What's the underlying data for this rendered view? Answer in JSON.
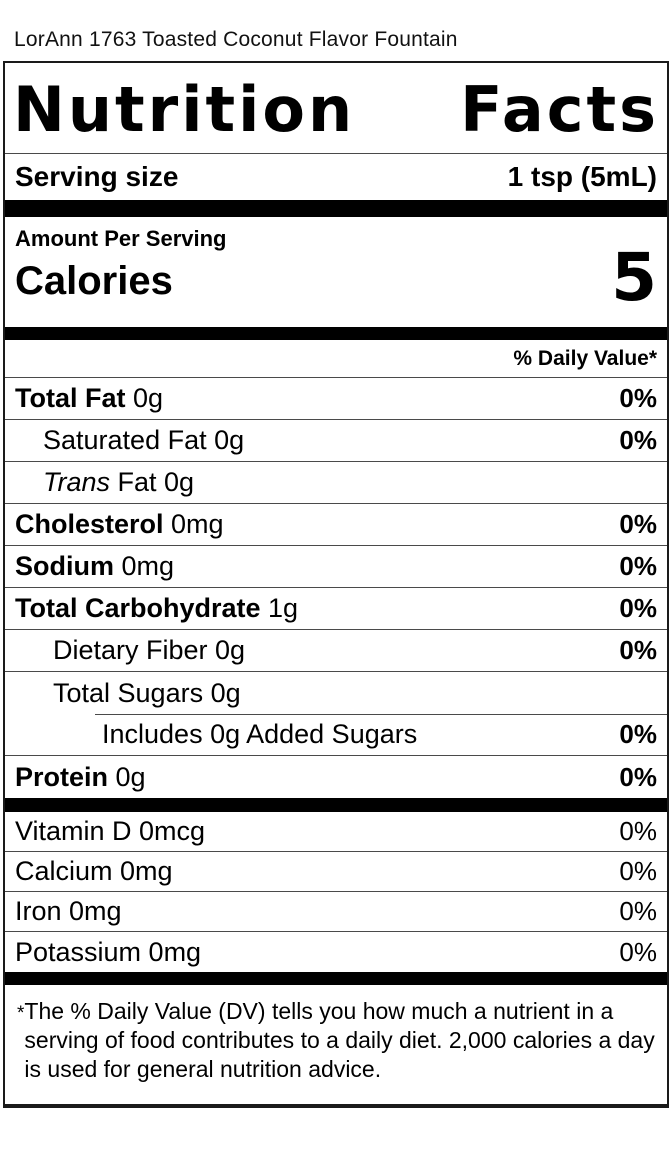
{
  "page": {
    "product_title": "LorAnn 1763 Toasted Coconut Flavor Fountain"
  },
  "label": {
    "title_word1": "Nutrition",
    "title_word2": "Facts",
    "serving": {
      "label": "Serving size",
      "value": "1 tsp (5mL)"
    },
    "amount_per_serving": "Amount Per Serving",
    "calories_label": "Calories",
    "calories_value": "5",
    "daily_value_header": "% Daily Value*",
    "rows": [
      {
        "strong": "Total Fat",
        "text": " 0g",
        "dv": "0%"
      },
      {
        "text": "Saturated Fat 0g",
        "dv": "0%"
      },
      {
        "italic": "Trans",
        "text": " Fat 0g",
        "dv": ""
      },
      {
        "strong": "Cholesterol",
        "text": " 0mg",
        "dv": "0%"
      },
      {
        "strong": "Sodium",
        "text": " 0mg",
        "dv": "0%"
      },
      {
        "strong": "Total Carbohydrate",
        "text": " 1g",
        "dv": "0%"
      },
      {
        "text": "Dietary Fiber 0g",
        "dv": "0%"
      },
      {
        "text": "Total Sugars 0g",
        "dv": ""
      },
      {
        "text": "Includes 0g Added Sugars",
        "dv": "0%"
      },
      {
        "strong": "Protein",
        "text": " 0g",
        "dv": "0%"
      },
      {
        "text": "Vitamin D 0mcg",
        "dv": "0%"
      },
      {
        "text": "Calcium 0mg",
        "dv": "0%"
      },
      {
        "text": "Iron 0mg",
        "dv": "0%"
      },
      {
        "text": "Potassium 0mg",
        "dv": "0%"
      }
    ],
    "footnote": {
      "asterisk": "*",
      "text": "The % Daily Value (DV) tells you how much a nutrient in a serving of food contributes to a daily diet. 2,000 calories a day is used for general nutrition advice."
    }
  },
  "colors": {
    "text": "#000000",
    "background": "#ffffff",
    "rule": "#4a4a4a",
    "bar": "#000000"
  }
}
